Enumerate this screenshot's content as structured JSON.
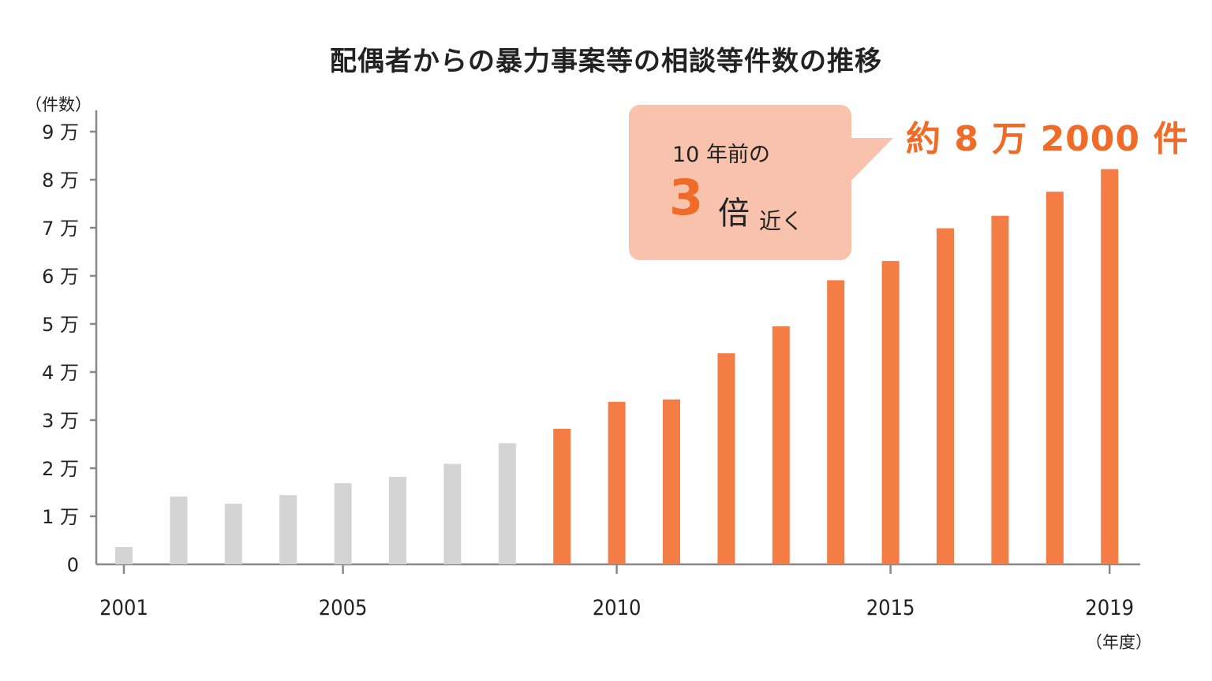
{
  "chart_data": {
    "type": "bar",
    "title": "配偶者からの暴力事案等の相談等件数の推移",
    "ylabel": "（件数）",
    "xlabel": "（年度）",
    "ylim": [
      0,
      90000
    ],
    "yticks": [
      {
        "value": 0,
        "label": "0"
      },
      {
        "value": 10000,
        "label": "1 万"
      },
      {
        "value": 20000,
        "label": "2 万"
      },
      {
        "value": 30000,
        "label": "3 万"
      },
      {
        "value": 40000,
        "label": "4 万"
      },
      {
        "value": 50000,
        "label": "5 万"
      },
      {
        "value": 60000,
        "label": "6 万"
      },
      {
        "value": 70000,
        "label": "7 万"
      },
      {
        "value": 80000,
        "label": "8 万"
      },
      {
        "value": 90000,
        "label": "9 万"
      }
    ],
    "xtick_labels": [
      "2001",
      "2005",
      "2010",
      "2015",
      "2019"
    ],
    "categories": [
      "2001",
      "2002",
      "2003",
      "2004",
      "2005",
      "2006",
      "2007",
      "2008",
      "2009",
      "2010",
      "2011",
      "2012",
      "2013",
      "2014",
      "2015",
      "2016",
      "2017",
      "2018",
      "2019"
    ],
    "values": [
      3600,
      14100,
      12600,
      14400,
      16900,
      18200,
      20900,
      25200,
      28200,
      33800,
      34300,
      43900,
      49500,
      59100,
      63100,
      69900,
      72500,
      77500,
      82200
    ],
    "colors": {
      "past": "#d4d4d4",
      "recent": "#f47d45",
      "axis": "#888888"
    },
    "highlight_from": "2009"
  },
  "callout": {
    "line1": "10 年前の",
    "big": "3",
    "bai": "倍",
    "chikaku": "近く",
    "color": "#f8c2ad"
  },
  "highlight": {
    "text": "約 8 万 2000 件",
    "color": "#f06a28"
  }
}
